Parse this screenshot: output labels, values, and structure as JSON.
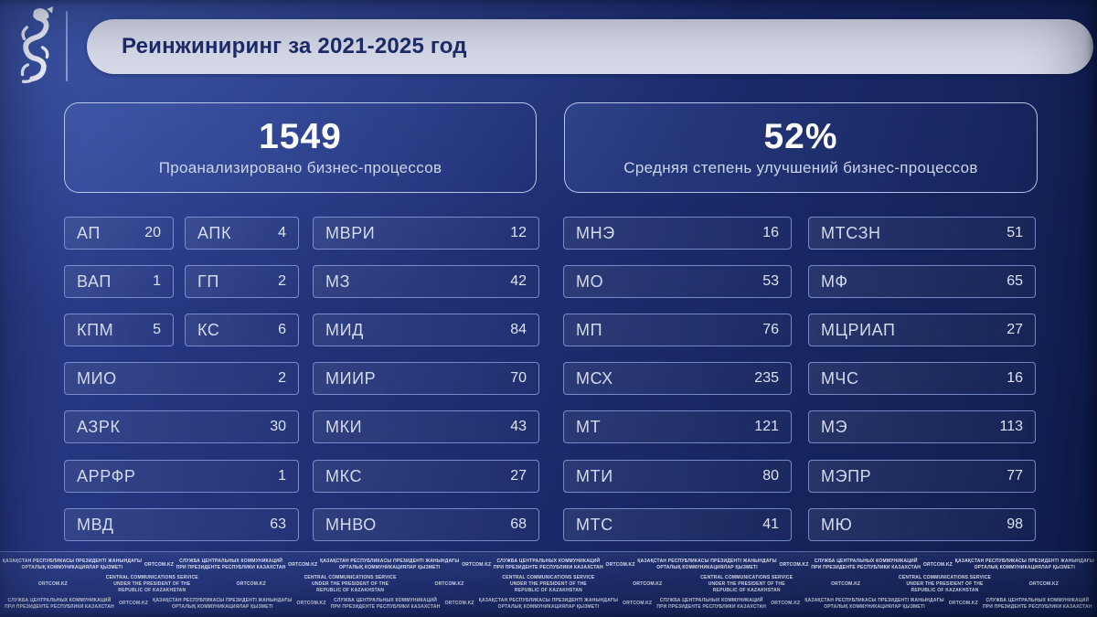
{
  "header": {
    "title": "Реинжиниринг за 2021-2025 год",
    "logo": "snow-leopard-emblem"
  },
  "stats": [
    {
      "value": "1549",
      "label": "Проанализировано бизнес-процессов"
    },
    {
      "value": "52%",
      "label": "Средняя степень улучшений бизнес-процессов"
    }
  ],
  "ministries": {
    "left_narrow_1": [
      {
        "label": "АП",
        "value": 20
      },
      {
        "label": "ВАП",
        "value": 1
      },
      {
        "label": "КПМ",
        "value": 5
      }
    ],
    "left_narrow_2": [
      {
        "label": "АПК",
        "value": 4
      },
      {
        "label": "ГП",
        "value": 2
      },
      {
        "label": "КС",
        "value": 6
      }
    ],
    "left_wide": [
      {
        "label": "МИО",
        "value": 2
      },
      {
        "label": "АЗРК",
        "value": 30
      },
      {
        "label": "АРРФР",
        "value": 1
      },
      {
        "label": "МВД",
        "value": 63
      }
    ],
    "col_3": [
      {
        "label": "МВРИ",
        "value": 12
      },
      {
        "label": "МЗ",
        "value": 42
      },
      {
        "label": "МИД",
        "value": 84
      },
      {
        "label": "МИИР",
        "value": 70
      },
      {
        "label": "МКИ",
        "value": 43
      },
      {
        "label": "МКС",
        "value": 27
      },
      {
        "label": "МНВО",
        "value": 68
      }
    ],
    "col_4": [
      {
        "label": "МНЭ",
        "value": 16
      },
      {
        "label": "МО",
        "value": 53
      },
      {
        "label": "МП",
        "value": 76
      },
      {
        "label": "МСХ",
        "value": 235
      },
      {
        "label": "МТ",
        "value": 121
      },
      {
        "label": "МТИ",
        "value": 80
      },
      {
        "label": "МТС",
        "value": 41
      }
    ],
    "col_5": [
      {
        "label": "МТСЗН",
        "value": 51
      },
      {
        "label": "МФ",
        "value": 65
      },
      {
        "label": "МЦРИАП",
        "value": 27
      },
      {
        "label": "МЧС",
        "value": 16
      },
      {
        "label": "МЭ",
        "value": 113
      },
      {
        "label": "МЭПР",
        "value": 77
      },
      {
        "label": "МЮ",
        "value": 98
      }
    ]
  },
  "watermark": {
    "texts": {
      "kk": "ҚАЗАҚСТАН РЕСПУБЛИКАСЫ ПРЕЗИДЕНТІ ЖАНЫНДАҒЫ\nОРТАЛЫҚ КОММУНИКАЦИЯЛАР ҚЫЗМЕТІ",
      "ru": "СЛУЖБА ЦЕНТРАЛЬНЫХ КОММУНИКАЦИЙ\nПРИ ПРЕЗИДЕНТЕ РЕСПУБЛИКИ КАЗАХСТАН",
      "en": "CENTRAL COMMUNICATIONS SERVICE\nUNDER THE PRESIDENT OF THE\nREPUBLIC OF KAZAKHSTAN",
      "ort": "ORTCOM.KZ"
    },
    "rows": [
      [
        "kk",
        "ort",
        "ru",
        "ort",
        "kk",
        "ort",
        "ru",
        "ort",
        "kk",
        "ort",
        "ru",
        "ort",
        "kk"
      ],
      [
        "ort",
        "en",
        "ort",
        "en",
        "ort",
        "en",
        "ort",
        "en",
        "ort",
        "en",
        "ort"
      ],
      [
        "ru",
        "ort",
        "kk",
        "ort",
        "ru",
        "ort",
        "kk",
        "ort",
        "ru",
        "ort",
        "kk",
        "ort",
        "ru"
      ]
    ]
  },
  "colors": {
    "background_navy": "#1b2b6b",
    "background_dark": "#0f1c4c",
    "title_pill_bg": "#d7dae9",
    "title_text": "#1d2c6b",
    "box_border": "#88a0e0",
    "stat_border": "#c8d5f4",
    "text_light": "#d3daee",
    "white": "#ffffff"
  }
}
